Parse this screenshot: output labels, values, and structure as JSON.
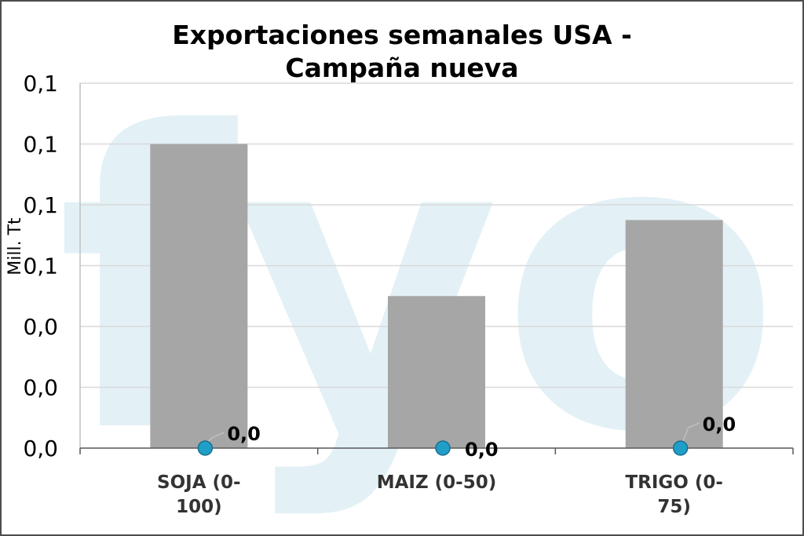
{
  "chart_data": {
    "type": "bar",
    "title_lines": [
      "Exportaciones semanales USA -",
      "Campaña nueva"
    ],
    "ylabel": "Mill. Tt",
    "yticks": [
      "0,0",
      "0,0",
      "0,0",
      "0,1",
      "0,1",
      "0,1",
      "0,1"
    ],
    "ylim": [
      0,
      0.12
    ],
    "grid": true,
    "categories": [
      {
        "lines": [
          "SOJA (0-",
          "100)"
        ]
      },
      {
        "lines": [
          "MAIZ (0-50)"
        ]
      },
      {
        "lines": [
          "TRIGO (0-",
          "75)"
        ]
      }
    ],
    "series": [
      {
        "type": "bar",
        "color": "#a6a6a6",
        "values": [
          0.1,
          0.05,
          0.075
        ]
      },
      {
        "type": "marker",
        "color": "#1f9ec7",
        "values": [
          0,
          0,
          0
        ],
        "labels": [
          "0,0",
          "0,0",
          "0,0"
        ]
      }
    ],
    "watermark_text": "fyo",
    "watermark_color": "#e3f1f6"
  }
}
